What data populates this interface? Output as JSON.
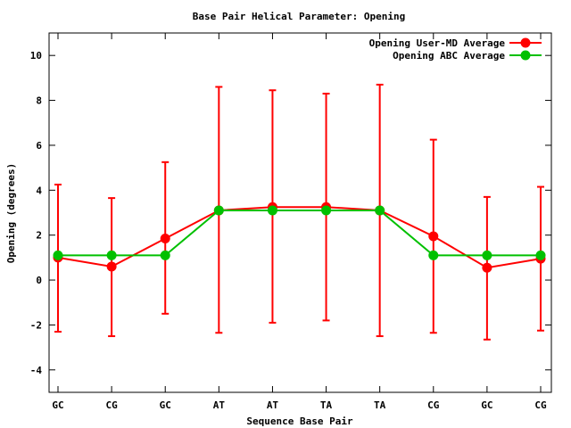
{
  "chart_data": {
    "type": "line",
    "title": "Base Pair Helical Parameter: Opening",
    "xlabel": "Sequence Base Pair",
    "ylabel": "Opening (degrees)",
    "categories": [
      "GC",
      "CG",
      "GC",
      "AT",
      "AT",
      "TA",
      "TA",
      "CG",
      "GC",
      "CG"
    ],
    "ylim": [
      -5,
      11
    ],
    "yticks": [
      -4,
      -2,
      0,
      2,
      4,
      6,
      8,
      10
    ],
    "grid": false,
    "legend_position": "top-right",
    "series": [
      {
        "name": "Opening User-MD Average",
        "color": "#ff0000",
        "values": [
          1.0,
          0.6,
          1.85,
          3.1,
          3.25,
          3.25,
          3.1,
          1.95,
          0.55,
          0.95
        ],
        "error_low": [
          -2.3,
          -2.5,
          -1.5,
          -2.35,
          -1.9,
          -1.8,
          -2.5,
          -2.35,
          -2.65,
          -2.25
        ],
        "error_high": [
          4.25,
          3.65,
          5.25,
          8.6,
          8.45,
          8.3,
          8.7,
          6.25,
          3.7,
          4.15
        ]
      },
      {
        "name": "Opening ABC Average",
        "color": "#00c000",
        "values": [
          1.1,
          1.1,
          1.1,
          3.1,
          3.1,
          3.1,
          3.1,
          1.1,
          1.1,
          1.1
        ]
      }
    ]
  }
}
